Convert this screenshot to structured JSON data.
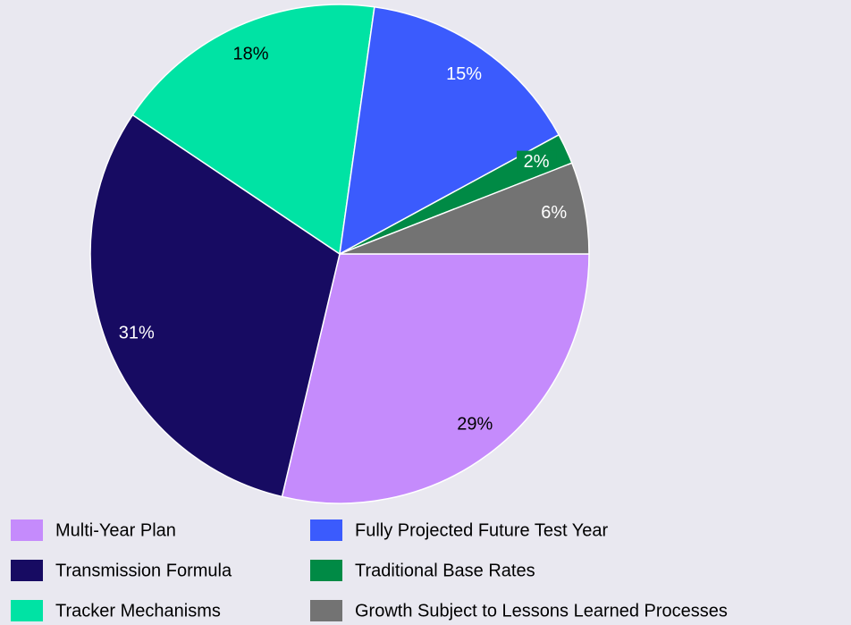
{
  "chart_data": {
    "type": "pie",
    "categories": [
      "Multi-Year Plan",
      "Transmission Formula",
      "Tracker Mechanisms",
      "Fully Projected Future Test Year",
      "Traditional Base Rates",
      "Growth Subject to Lessons Learned Processes"
    ],
    "values": [
      29,
      31,
      18,
      15,
      2,
      6
    ],
    "value_labels": [
      "29%",
      "31%",
      "18%",
      "15%",
      "2%",
      "6%"
    ],
    "colors": [
      "#c58bfc",
      "#170b62",
      "#00e3a4",
      "#3b5bfd",
      "#008a45",
      "#737373"
    ],
    "legend": "bottom"
  }
}
